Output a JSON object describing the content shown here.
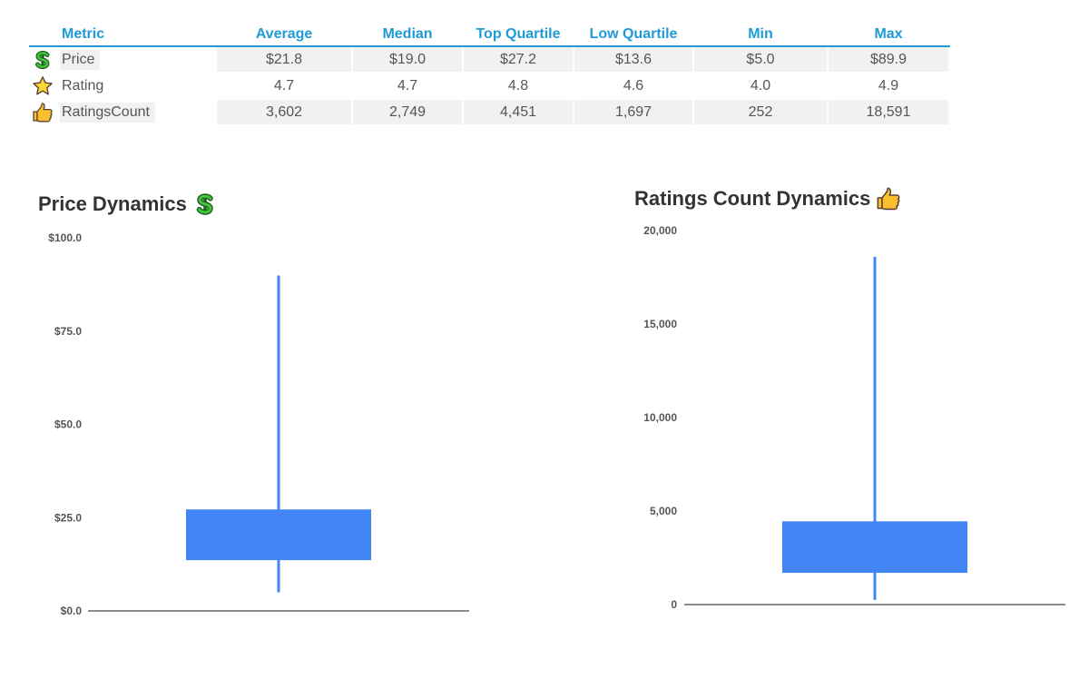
{
  "table": {
    "headers": [
      "Metric",
      "Average",
      "Median",
      "Top Quartile",
      "Low Quartile",
      "Min",
      "Max"
    ],
    "rows": [
      {
        "icon": "dollar-icon",
        "metric": "Price",
        "values": [
          "$21.8",
          "$19.0",
          "$27.2",
          "$13.6",
          "$5.0",
          "$89.9"
        ]
      },
      {
        "icon": "star-icon",
        "metric": "Rating",
        "values": [
          "4.7",
          "4.7",
          "4.8",
          "4.6",
          "4.0",
          "4.9"
        ]
      },
      {
        "icon": "thumbs-up-icon",
        "metric": "RatingsCount",
        "values": [
          "3,602",
          "2,749",
          "4,451",
          "1,697",
          "252",
          "18,591"
        ]
      }
    ]
  },
  "colors": {
    "header_text": "#1e9bd7",
    "box_fill": "#4285f4",
    "row_gray": "#f1f1f1",
    "axis": "#666666"
  },
  "chart_data": [
    {
      "type": "box",
      "title": "Price Dynamics",
      "title_icon": "dollar-icon",
      "ylim": [
        0,
        100
      ],
      "yticks": [
        0,
        25,
        50,
        75,
        100
      ],
      "ytick_labels": [
        "$0.0",
        "$25.0",
        "$50.0",
        "$75.0",
        "$100.0"
      ],
      "box": {
        "min": 5.0,
        "q1": 13.6,
        "q3": 27.2,
        "max": 89.9
      },
      "grid": false
    },
    {
      "type": "box",
      "title": "Ratings Count Dynamics",
      "title_icon": "thumbs-up-icon",
      "ylim": [
        0,
        20000
      ],
      "yticks": [
        0,
        5000,
        10000,
        15000,
        20000
      ],
      "ytick_labels": [
        "0",
        "5,000",
        "10,000",
        "15,000",
        "20,000"
      ],
      "box": {
        "min": 252,
        "q1": 1697,
        "q3": 4451,
        "max": 18591
      },
      "grid": false
    }
  ]
}
